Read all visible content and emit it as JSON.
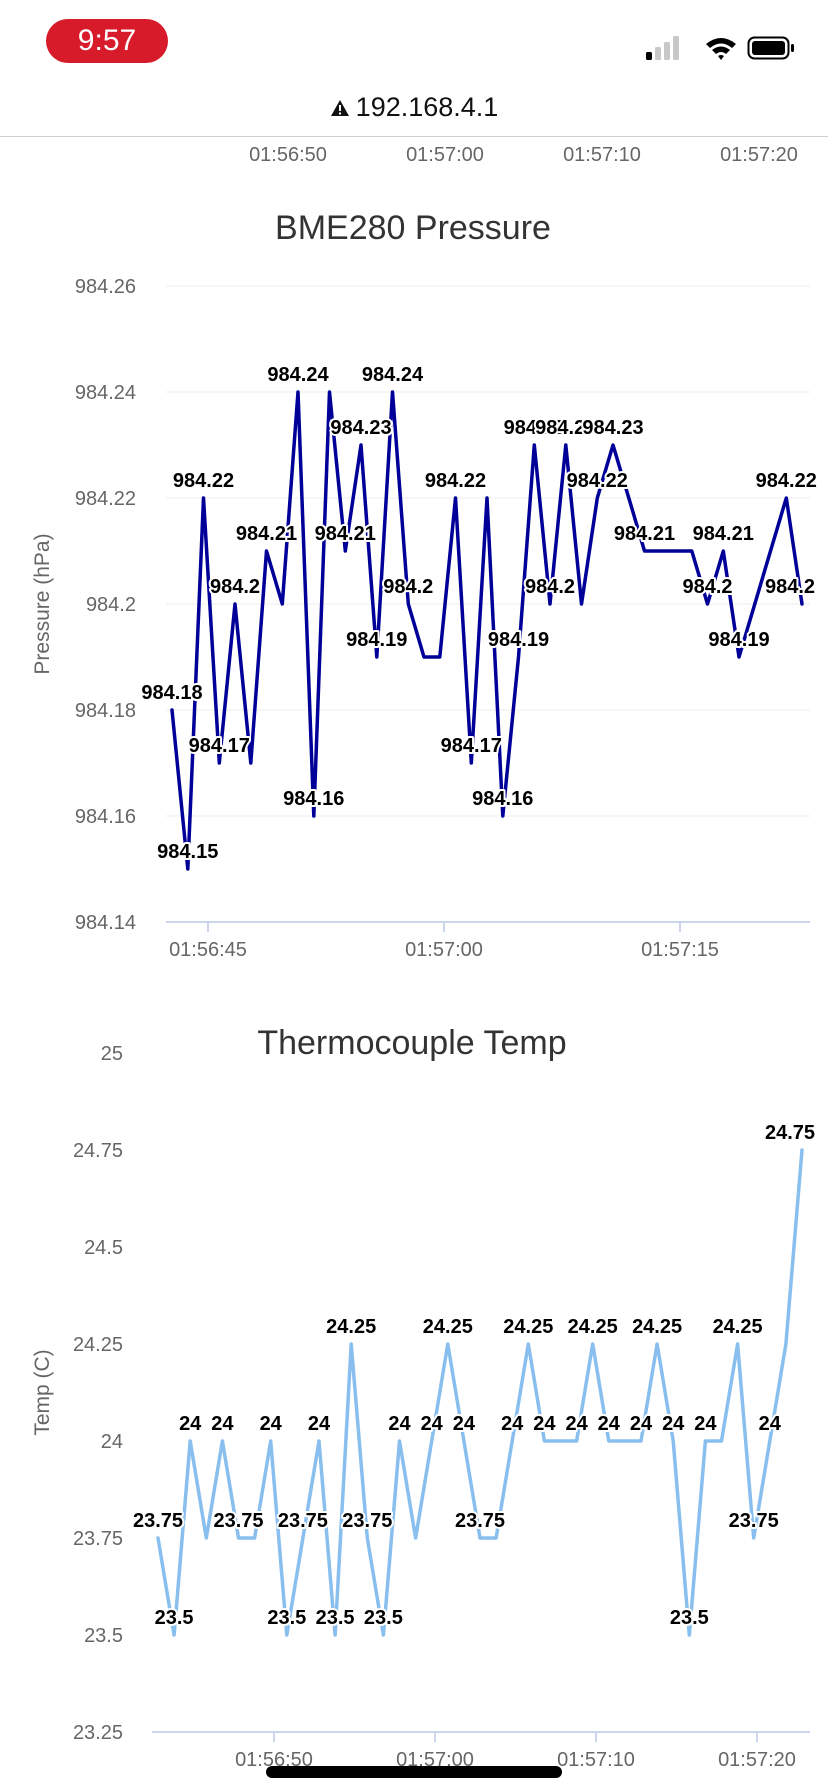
{
  "status_bar": {
    "time": "9:57",
    "icons": [
      "signal-icon",
      "wifi-icon",
      "battery-icon"
    ]
  },
  "url_bar": {
    "url": "192.168.4.1",
    "icon": "warning-icon"
  },
  "top_axis": {
    "tick_labels": [
      "01:56:50",
      "01:57:00",
      "01:57:10",
      "01:57:20"
    ]
  },
  "chart_data": [
    {
      "type": "line",
      "title": "BME280 Pressure",
      "ylabel": "Pressure (hPa)",
      "xlabel": "",
      "ylim": [
        984.14,
        984.26
      ],
      "yticks": [
        "984.26",
        "984.24",
        "984.22",
        "984.2",
        "984.18",
        "984.16",
        "984.14"
      ],
      "xticks": [
        "01:56:45",
        "01:57:00",
        "01:57:15"
      ],
      "grid": true,
      "color": "#000099",
      "series": [
        {
          "values": [
            984.18,
            984.15,
            984.22,
            984.17,
            984.2,
            984.17,
            984.21,
            984.2,
            984.24,
            984.16,
            984.24,
            984.21,
            984.23,
            984.19,
            984.24,
            984.2,
            984.19,
            984.19,
            984.22,
            984.17,
            984.22,
            984.16,
            984.19,
            984.23,
            984.2,
            984.23,
            984.2,
            984.22,
            984.23,
            984.22,
            984.21,
            984.21,
            984.21,
            984.21,
            984.2,
            984.21,
            984.19,
            984.2,
            984.21,
            984.22,
            984.2
          ],
          "labels": [
            "984.18",
            "984.15",
            "984.22",
            "984.17",
            "984.2",
            "",
            "984.21",
            "",
            "984.24",
            "984.16",
            "",
            "984.21",
            "984.23",
            "984.19",
            "984.24",
            "984.2",
            "",
            "",
            "984.22",
            "984.17",
            "",
            "984.16",
            "984.19",
            "984.23",
            "984.2",
            "984.23",
            "",
            "984.22",
            "984.23",
            "",
            "984.21",
            "",
            "",
            "",
            "984.2",
            "984.21",
            "984.19",
            "",
            "",
            "984.22",
            "984.2"
          ]
        }
      ]
    },
    {
      "type": "line",
      "title": "Thermocouple Temp",
      "ylabel": "Temp (C)",
      "xlabel": "",
      "ylim": [
        23.25,
        25
      ],
      "yticks": [
        "25",
        "24.75",
        "24.5",
        "24.25",
        "24",
        "23.75",
        "23.5",
        "23.25"
      ],
      "xticks": [
        "01:56:50",
        "01:57:00",
        "01:57:10",
        "01:57:20"
      ],
      "grid": false,
      "color": "#89bfee",
      "series": [
        {
          "values": [
            23.75,
            23.5,
            24,
            23.75,
            24,
            23.75,
            23.75,
            24,
            23.5,
            23.75,
            24,
            23.5,
            24.25,
            23.75,
            23.5,
            24,
            23.75,
            24,
            24.25,
            24,
            23.75,
            23.75,
            24,
            24.25,
            24,
            24,
            24,
            24.25,
            24,
            24,
            24,
            24.25,
            24,
            23.5,
            24,
            24,
            24.25,
            23.75,
            24,
            24.25,
            24.75
          ],
          "labels": [
            "23.75",
            "23.5",
            "24",
            "",
            "24",
            "23.75",
            "",
            "24",
            "23.5",
            "23.75",
            "24",
            "23.5",
            "24.25",
            "23.75",
            "23.5",
            "24",
            "",
            "24",
            "24.25",
            "24",
            "23.75",
            "",
            "24",
            "24.25",
            "24",
            "",
            "24",
            "24.25",
            "24",
            "",
            "24",
            "24.25",
            "24",
            "23.5",
            "24",
            "",
            "24.25",
            "23.75",
            "24",
            "",
            "24.75"
          ]
        }
      ]
    }
  ]
}
